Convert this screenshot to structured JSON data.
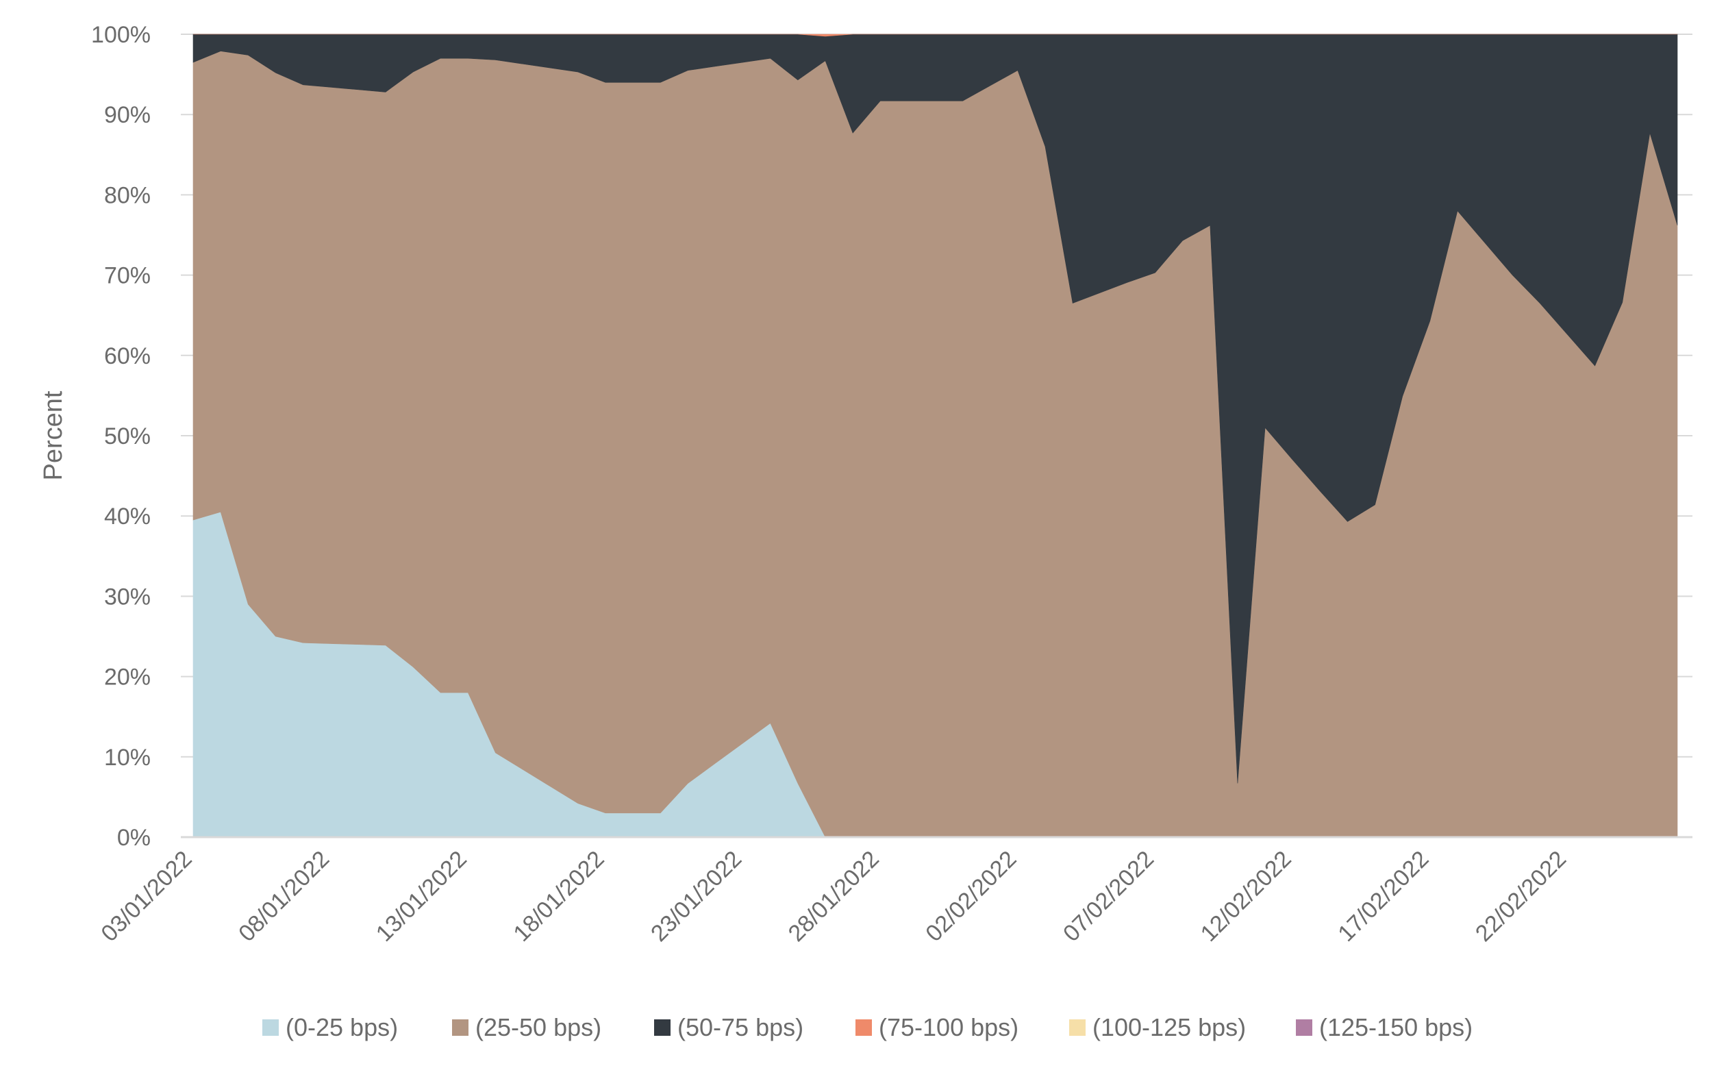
{
  "chart_data": {
    "type": "area",
    "stacked": true,
    "normalized_percent": true,
    "xlabel": "",
    "ylabel": "Percent",
    "ylim": [
      0,
      100
    ],
    "grid": "horizontal",
    "legend_position": "bottom",
    "y_ticks": [
      "0%",
      "10%",
      "20%",
      "30%",
      "40%",
      "50%",
      "60%",
      "70%",
      "80%",
      "90%",
      "100%"
    ],
    "x_tick_labels": [
      "03/01/2022",
      "08/01/2022",
      "13/01/2022",
      "18/01/2022",
      "23/01/2022",
      "28/01/2022",
      "02/02/2022",
      "07/02/2022",
      "12/02/2022",
      "17/02/2022",
      "22/02/2022"
    ],
    "x": [
      "03/01/2022",
      "04/01/2022",
      "05/01/2022",
      "06/01/2022",
      "07/01/2022",
      "08/01/2022",
      "09/01/2022",
      "10/01/2022",
      "11/01/2022",
      "12/01/2022",
      "13/01/2022",
      "14/01/2022",
      "15/01/2022",
      "16/01/2022",
      "17/01/2022",
      "18/01/2022",
      "19/01/2022",
      "20/01/2022",
      "21/01/2022",
      "22/01/2022",
      "23/01/2022",
      "24/01/2022",
      "25/01/2022",
      "26/01/2022",
      "27/01/2022",
      "28/01/2022",
      "29/01/2022",
      "30/01/2022",
      "31/01/2022",
      "01/02/2022",
      "02/02/2022",
      "03/02/2022",
      "04/02/2022",
      "05/02/2022",
      "06/02/2022",
      "07/02/2022",
      "08/02/2022",
      "09/02/2022",
      "10/02/2022",
      "11/02/2022",
      "12/02/2022",
      "13/02/2022",
      "14/02/2022",
      "15/02/2022",
      "16/02/2022",
      "17/02/2022",
      "18/02/2022",
      "19/02/2022",
      "20/02/2022",
      "21/02/2022",
      "22/02/2022",
      "23/02/2022",
      "24/02/2022",
      "25/02/2022",
      "26/02/2022"
    ],
    "series": [
      {
        "name": "(0-25 bps)",
        "color": "#bcd8e1",
        "values": [
          39.5,
          40.5,
          29,
          25,
          24.2,
          24.1,
          24,
          23.9,
          21.2,
          18,
          18,
          10.5,
          8.4,
          6.3,
          4.2,
          3,
          3,
          3,
          6.7,
          9.2,
          11.7,
          14.2,
          6.7,
          0,
          0,
          0,
          0,
          0,
          0,
          0,
          0,
          0,
          0,
          0,
          0,
          0,
          0,
          0,
          0,
          0,
          0,
          0,
          0,
          0,
          0,
          0,
          0,
          0,
          0,
          0,
          0,
          0,
          0,
          0,
          0
        ]
      },
      {
        "name": "(25-50 bps)",
        "color": "#b29581",
        "values": [
          57,
          57.4,
          68.4,
          70.2,
          69.5,
          69.3,
          69.1,
          68.9,
          74.1,
          79,
          79,
          86.3,
          87.9,
          89.5,
          91.1,
          91,
          91,
          91,
          88.8,
          86.8,
          84.8,
          82.8,
          87.6,
          96.7,
          87.7,
          91.7,
          91.7,
          91.7,
          91.7,
          93.6,
          95.5,
          86,
          66.5,
          67.8,
          69.1,
          70.3,
          74.3,
          76.2,
          6.7,
          51,
          47,
          43.1,
          39.3,
          41.4,
          54.9,
          64.3,
          78,
          74,
          70,
          66.5,
          62.6,
          58.7,
          66.6,
          87.7,
          76.2
        ]
      },
      {
        "name": "(50-75 bps)",
        "color": "#333a41",
        "values": [
          3.5,
          2.1,
          2.6,
          4.8,
          6.3,
          6.6,
          6.9,
          7.2,
          4.7,
          3,
          3,
          3.2,
          3.7,
          4.2,
          4.7,
          6,
          6,
          6,
          4.5,
          4,
          3.5,
          3,
          5.7,
          3.05,
          12.3,
          8.3,
          8.3,
          8.3,
          8.3,
          6.4,
          4.5,
          14,
          33.5,
          32.2,
          30.9,
          29.7,
          25.7,
          23.8,
          93.3,
          49,
          53,
          56.9,
          60.7,
          58.6,
          45.1,
          35.7,
          22,
          26,
          30,
          33.5,
          37.4,
          41.3,
          33.4,
          12.3,
          23.8
        ]
      },
      {
        "name": "(75-100 bps)",
        "color": "#ef8a6a",
        "values": [
          0,
          0,
          0,
          0,
          0,
          0,
          0,
          0,
          0,
          0,
          0,
          0,
          0,
          0,
          0,
          0,
          0,
          0,
          0,
          0,
          0,
          0,
          0,
          0.25,
          0,
          0,
          0,
          0,
          0,
          0,
          0,
          0,
          0,
          0,
          0,
          0,
          0,
          0,
          0,
          0,
          0,
          0,
          0,
          0,
          0,
          0,
          0,
          0,
          0,
          0,
          0,
          0,
          0,
          0,
          0
        ]
      },
      {
        "name": "(100-125 bps)",
        "color": "#f6dfa8",
        "values": [
          0,
          0,
          0,
          0,
          0,
          0,
          0,
          0,
          0,
          0,
          0,
          0,
          0,
          0,
          0,
          0,
          0,
          0,
          0,
          0,
          0,
          0,
          0,
          0,
          0,
          0,
          0,
          0,
          0,
          0,
          0,
          0,
          0,
          0,
          0,
          0,
          0,
          0,
          0,
          0,
          0,
          0,
          0,
          0,
          0,
          0,
          0,
          0,
          0,
          0,
          0,
          0,
          0,
          0,
          0
        ]
      },
      {
        "name": "(125-150 bps)",
        "color": "#b07ea3",
        "values": [
          0,
          0,
          0,
          0,
          0,
          0,
          0,
          0,
          0,
          0,
          0,
          0,
          0,
          0,
          0,
          0,
          0,
          0,
          0,
          0,
          0,
          0,
          0,
          0,
          0,
          0,
          0,
          0,
          0,
          0,
          0,
          0,
          0,
          0,
          0,
          0,
          0,
          0,
          0,
          0,
          0,
          0,
          0,
          0,
          0,
          0,
          0,
          0,
          0,
          0,
          0,
          0,
          0,
          0,
          0
        ]
      }
    ]
  }
}
